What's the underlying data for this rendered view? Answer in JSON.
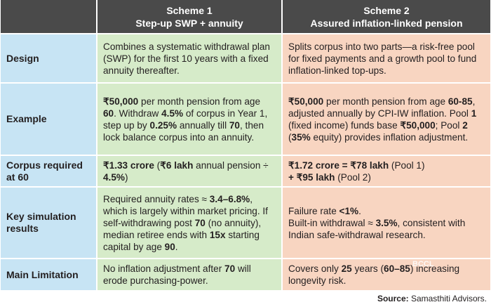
{
  "table": {
    "header": [
      {
        "title": "Scheme 1",
        "subtitle": "Step-up SWP + annuity"
      },
      {
        "title": "Scheme 2",
        "subtitle": "Assured inflation-linked pension"
      }
    ],
    "rows": [
      {
        "label": "Design",
        "cells": [
          [
            [
              "Combines a systematic withdrawal plan (SWP) for the first 10 years with a fixed annuity thereafter."
            ]
          ],
          [
            [
              "Splits corpus into two parts—a risk-free pool for fixed payments and a growth pool to fund inflation-linked top-ups."
            ]
          ]
        ]
      },
      {
        "label": "Example",
        "cells": [
          [
            [
              {
                "t": "₹50,000",
                "b": true
              },
              " per month pension from age ",
              {
                "t": "60",
                "b": true
              },
              ". Withdraw ",
              {
                "t": "4.5%",
                "b": true
              },
              " of corpus in Year 1, step up by ",
              {
                "t": "0.25%",
                "b": true
              },
              " annually till ",
              {
                "t": "70",
                "b": true
              },
              ", then lock balance corpus into an annuity."
            ]
          ],
          [
            [
              {
                "t": "₹50,000",
                "b": true
              },
              " per month pension from age ",
              {
                "t": "60-85",
                "b": true
              },
              ", adjusted annually by CPI-IW inflation. Pool ",
              {
                "t": "1",
                "b": true
              },
              " (fixed income) funds base ",
              {
                "t": "₹50,000",
                "b": true
              },
              "; Pool ",
              {
                "t": "2",
                "b": true
              },
              " (",
              {
                "t": "35%",
                "b": true
              },
              " equity) provides inflation adjustment."
            ]
          ]
        ]
      },
      {
        "label": "Corpus required at 60",
        "cells": [
          [
            [
              {
                "t": "₹1.33 crore",
                "b": true
              },
              " (",
              {
                "t": "₹6 lakh",
                "b": true
              },
              " annual pension ÷ ",
              {
                "t": "4.5%",
                "b": true
              },
              ")"
            ]
          ],
          [
            [
              {
                "t": "₹1.72 crore = ₹78 lakh",
                "b": true
              },
              " (Pool 1)"
            ],
            [
              {
                "t": "+ ₹95 lakh",
                "b": true
              },
              " (Pool 2)"
            ]
          ]
        ]
      },
      {
        "label": "Key simulation results",
        "cells": [
          [
            [
              "Required annuity rates ≈ ",
              {
                "t": "3.4–6.8%",
                "b": true
              },
              ", which is largely within market pricing. If self-withdrawing post ",
              {
                "t": "70",
                "b": true
              },
              " (no annuity), median retiree ends with ",
              {
                "t": "15x",
                "b": true
              },
              " starting capital by age ",
              {
                "t": "90",
                "b": true
              },
              "."
            ]
          ],
          [
            [
              "Failure rate ",
              {
                "t": "<1%",
                "b": true
              },
              "."
            ],
            [
              "Built-in withdrawal ≈ ",
              {
                "t": "3.5%",
                "b": true
              },
              ", consistent with Indian safe-withdrawal research."
            ]
          ]
        ]
      },
      {
        "label": "Main Limitation",
        "cells": [
          [
            [
              "No inflation adjustment after ",
              {
                "t": "70",
                "b": true
              },
              " will erode purchasing-power."
            ]
          ],
          [
            [
              "Covers only ",
              {
                "t": "25",
                "b": true
              },
              " years (",
              {
                "t": "60–85",
                "b": true
              },
              ") increasing longevity risk."
            ]
          ]
        ]
      }
    ]
  },
  "watermark": "BCCL",
  "source": {
    "label": "Source:",
    "text": " Samasthiti Advisors."
  }
}
